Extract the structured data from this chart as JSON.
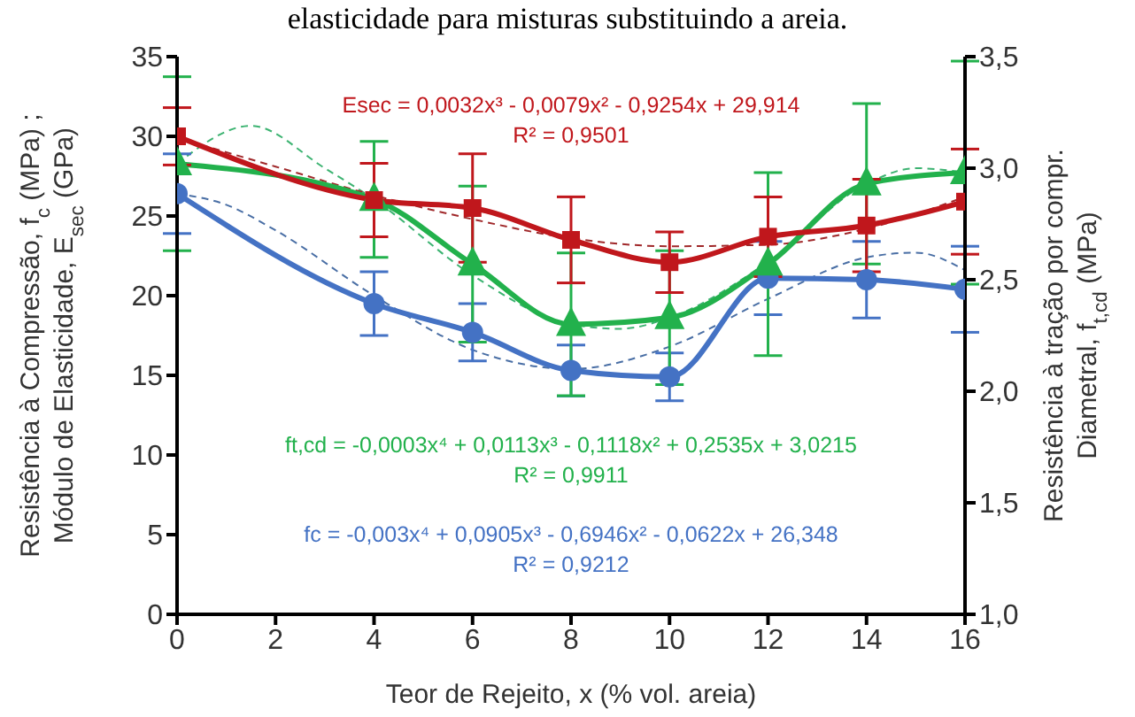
{
  "chart_data": {
    "type": "line",
    "title": "elasticidade para misturas substituindo a areia.",
    "xlabel": "Teor de Rejeito, x (% vol. areia)",
    "ylabel": "Resistência à Compressão, f$_{c}$ (MPa) ;\nMódulo de Elasticidade, E$_{sec}$ (GPa)",
    "y2label": "Resistência à tração por compr.\nDiametral, f$_{t,cd}$ (MPa)",
    "x": [
      0,
      4,
      6,
      8,
      10,
      12,
      14,
      16
    ],
    "xlim": [
      0,
      16
    ],
    "xticks": [
      0,
      2,
      4,
      6,
      8,
      10,
      12,
      14,
      16
    ],
    "ylim": [
      0,
      35
    ],
    "yticks": [
      0,
      5,
      10,
      15,
      20,
      25,
      30,
      35
    ],
    "y2lim": [
      1,
      3.5
    ],
    "y2ticks": [
      {
        "value": 1,
        "label": "1,0"
      },
      {
        "value": 1.5,
        "label": "1,5"
      },
      {
        "value": 2,
        "label": "2,0"
      },
      {
        "value": 2.5,
        "label": "2,5"
      },
      {
        "value": 3,
        "label": "3,0"
      },
      {
        "value": 3.5,
        "label": "3,5"
      }
    ],
    "series": [
      {
        "color": "#c0171c",
        "marker": "square",
        "line_style": "solid",
        "values": [
          30,
          26,
          25.5,
          23.5,
          22.1,
          23.7,
          24.4,
          25.9
        ],
        "errors": [
          1.8,
          2.3,
          3.4,
          2.7,
          1.9,
          2.5,
          2.9,
          3.3
        ]
      },
      {
        "color": "#22b14c",
        "marker": "triangle",
        "line_style": "solid",
        "axis": "y2",
        "values": [
          3.02,
          2.86,
          2.57,
          2.3,
          2.33,
          2.57,
          2.93,
          2.98
        ],
        "errors": [
          0.39,
          0.26,
          0.35,
          0.32,
          0.3,
          0.41,
          0.36,
          0.5
        ]
      },
      {
        "color": "#4472c4",
        "marker": "circle",
        "line_style": "solid",
        "values": [
          26.4,
          19.5,
          17.7,
          15.3,
          14.9,
          21.1,
          21.0,
          20.4
        ],
        "errors": [
          2.5,
          2,
          1.8,
          1.6,
          1.5,
          2.3,
          2.4,
          2.7
        ]
      },
      {
        "color": "#a0282a",
        "marker": "none",
        "line_style": "dashed",
        "x": [
          0,
          2,
          4,
          6,
          8,
          10,
          12,
          14,
          16
        ],
        "values": [
          29.9,
          28.1,
          26.3,
          24.8,
          23.6,
          23.1,
          23.2,
          24.2,
          26.2
        ]
      },
      {
        "color": "#3cb371",
        "marker": "none",
        "line_style": "dashed",
        "axis": "y2",
        "x": [
          0,
          1.5,
          3,
          4,
          6,
          8,
          9,
          10,
          12,
          14,
          15,
          16
        ],
        "values": [
          3.02,
          3.19,
          3.0,
          2.86,
          2.52,
          2.3,
          2.28,
          2.33,
          2.58,
          2.93,
          3.0,
          2.98
        ]
      },
      {
        "color": "#4a6fa5",
        "marker": "none",
        "line_style": "dashed",
        "x": [
          0,
          1,
          2,
          4,
          6,
          8,
          10,
          12,
          14,
          15,
          16
        ],
        "values": [
          26.4,
          25.7,
          24.1,
          20.0,
          16.6,
          15.4,
          16.8,
          19.8,
          22.4,
          22.7,
          21.6
        ]
      }
    ],
    "annotations": [
      "Esec = 0,0032x³ - 0,0079x² - 0,9254x + 29,914\nR² = 0,9501",
      "ft,cd = -0,0003x⁴ + 0,0113x³ - 0,1118x² + 0,2535x + 3,0215\nR² = 0,9911",
      "fc = -0,003x⁴ + 0,0905x³ - 0,6946x² - 0,0622x + 26,348\nR² = 0,9212"
    ]
  }
}
